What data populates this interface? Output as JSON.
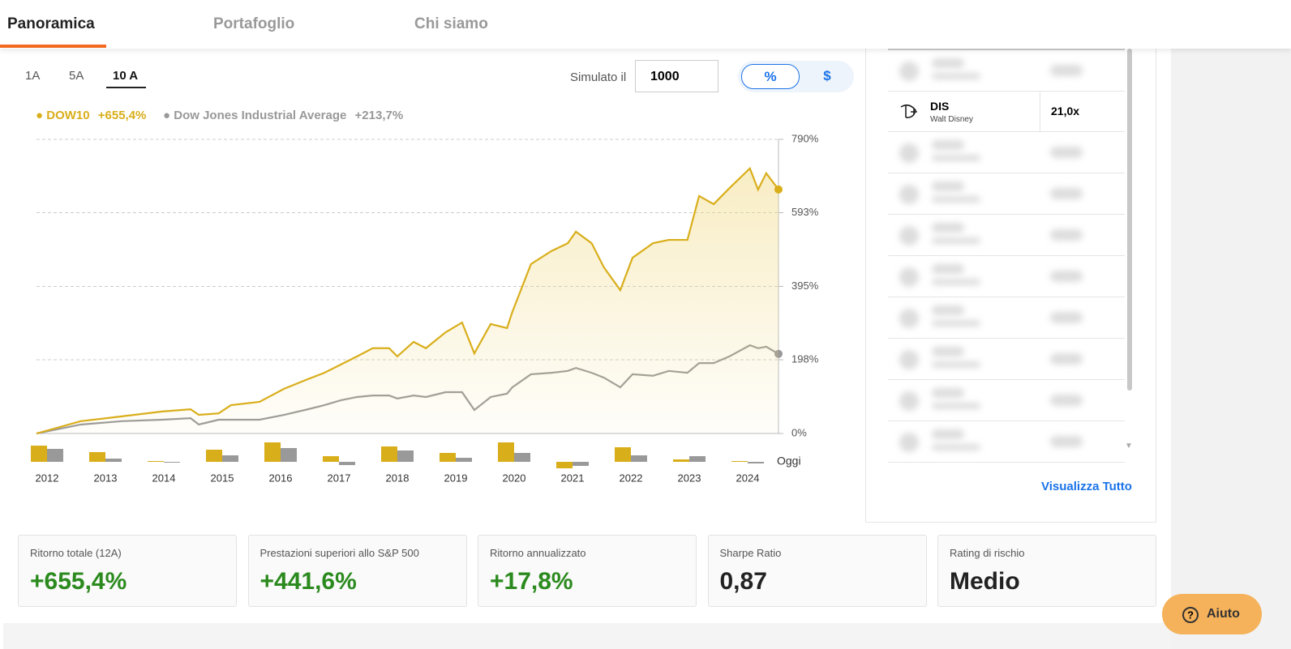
{
  "tabs": [
    "Panoramica",
    "Portafoglio",
    "Chi siamo"
  ],
  "periods": [
    "1A",
    "5A",
    "10 A"
  ],
  "simulator": {
    "label": "Simulato il",
    "input": "1000",
    "toggle": [
      "%",
      "$"
    ]
  },
  "chart_data": [
    {
      "type": "line",
      "series": [
        {
          "name": "DOW10",
          "color": "#d9ae1b",
          "total_label": "+655,4%",
          "x": [
            2011.82,
            2012.58,
            2013.28,
            2013.97,
            2014.46,
            2014.6,
            2014.94,
            2015.15,
            2015.64,
            2016.06,
            2016.47,
            2016.75,
            2017.03,
            2017.31,
            2017.58,
            2017.86,
            2018.0,
            2018.28,
            2018.49,
            2018.83,
            2019.11,
            2019.32,
            2019.6,
            2019.88,
            2019.97,
            2020.29,
            2020.64,
            2020.92,
            2021.06,
            2021.33,
            2021.54,
            2021.82,
            2022.03,
            2022.38,
            2022.65,
            2022.97,
            2023.17,
            2023.42,
            2023.69,
            2024.04,
            2024.18,
            2024.32,
            2024.53
          ],
          "values": [
            0,
            33,
            46,
            59,
            65,
            50,
            54,
            76,
            85,
            120,
            146,
            163,
            185,
            207,
            229,
            229,
            207,
            246,
            229,
            272,
            298,
            215,
            294,
            283,
            326,
            455,
            490,
            511,
            542,
            511,
            446,
            385,
            472,
            511,
            520,
            520,
            638,
            616,
            659,
            712,
            655,
            699,
            655.4
          ]
        },
        {
          "name": "Dow Jones Industrial Average",
          "color": "#999999",
          "total_label": "+213,7%",
          "x": [
            2011.82,
            2012.58,
            2013.28,
            2013.97,
            2014.46,
            2014.6,
            2014.94,
            2015.15,
            2015.64,
            2016.06,
            2016.47,
            2016.75,
            2017.03,
            2017.31,
            2017.58,
            2017.86,
            2018.0,
            2018.28,
            2018.49,
            2018.83,
            2019.11,
            2019.32,
            2019.6,
            2019.88,
            2019.97,
            2020.29,
            2020.64,
            2020.92,
            2021.06,
            2021.33,
            2021.54,
            2021.82,
            2022.03,
            2022.38,
            2022.65,
            2022.97,
            2023.17,
            2023.42,
            2023.69,
            2024.04,
            2024.18,
            2024.32,
            2024.53
          ],
          "values": [
            0,
            24,
            33,
            37,
            41,
            24,
            37,
            37,
            37,
            50,
            65,
            76,
            89,
            98,
            102,
            102,
            94,
            102,
            98,
            111,
            111,
            63,
            98,
            107,
            124,
            159,
            163,
            168,
            176,
            163,
            150,
            124,
            159,
            155,
            168,
            163,
            189,
            189,
            207,
            237,
            229,
            233,
            213.7
          ]
        }
      ],
      "xlim": [
        2011.82,
        2024.53
      ],
      "ylim": [
        0,
        790
      ],
      "yticks": [
        {
          "value": 0,
          "label": "0%"
        },
        {
          "value": 198,
          "label": "198%"
        },
        {
          "value": 395,
          "label": "395%"
        },
        {
          "value": 593,
          "label": "593%"
        },
        {
          "value": 790,
          "label": "790%"
        }
      ],
      "grid": true
    },
    {
      "type": "bar",
      "categories": [
        "2012",
        "2013",
        "2014",
        "2015",
        "2016",
        "2017",
        "2018",
        "2019",
        "2020",
        "2021",
        "2022",
        "2023",
        "2024"
      ],
      "end_label": "Oggi",
      "series": [
        {
          "name": "DOW10",
          "color": "#d9ae1b",
          "values": [
            20,
            12,
            1,
            15,
            24,
            7,
            19,
            11,
            24,
            -8,
            18,
            3,
            1
          ]
        },
        {
          "name": "Dow Jones Industrial Average",
          "color": "#999999",
          "values": [
            16,
            4,
            -1,
            8,
            17,
            -4,
            14,
            5,
            11,
            -5,
            8,
            7,
            -2
          ]
        }
      ],
      "ylim": [
        -10,
        25
      ]
    }
  ],
  "holding": {
    "ticker": "DIS",
    "name": "Walt Disney",
    "value": "21,0x"
  },
  "view_all": "Visualizza Tutto",
  "stats": [
    {
      "label": "Ritorno totale (12A)",
      "value": "+655,4%"
    },
    {
      "label": "Prestazioni superiori allo S&P 500",
      "value": "+441,6%"
    },
    {
      "label": "Ritorno annualizzato",
      "value": "+17,8%"
    },
    {
      "label": "Sharpe Ratio",
      "value": "0,87"
    },
    {
      "label": "Rating di rischio",
      "value": "Medio"
    }
  ],
  "help": "Aiuto"
}
